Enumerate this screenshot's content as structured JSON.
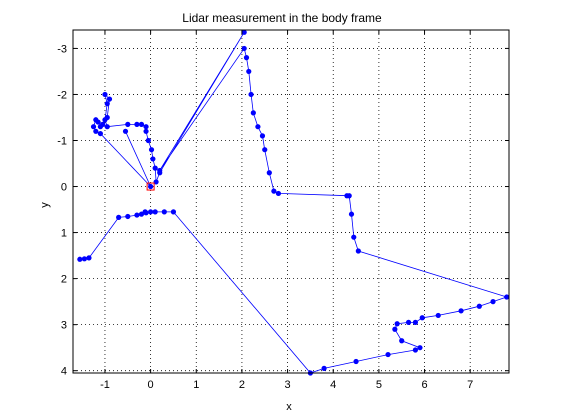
{
  "chart_data": {
    "type": "line",
    "title": "Lidar measurement in the body frame",
    "xlabel": "x",
    "ylabel": "y",
    "xlim": [
      -1.7,
      7.85
    ],
    "ylim": [
      -3.4,
      4.05
    ],
    "y_reversed": true,
    "grid": true,
    "x_ticks": [
      -1,
      0,
      1,
      2,
      3,
      4,
      5,
      6,
      7
    ],
    "y_ticks": [
      -3,
      -2,
      -1,
      0,
      1,
      2,
      3,
      4
    ],
    "series": [
      {
        "color": "#0000ff",
        "marker": "point",
        "points": [
          [
            -1.55,
            1.58
          ],
          [
            -1.45,
            1.57
          ],
          [
            -1.35,
            1.55
          ],
          [
            -0.7,
            0.67
          ],
          [
            -0.5,
            0.65
          ],
          [
            -0.3,
            0.62
          ],
          [
            -0.2,
            0.6
          ],
          [
            -0.1,
            0.57
          ],
          [
            -0.12,
            0.55
          ],
          [
            0.0,
            0.55
          ],
          [
            0.1,
            0.55
          ],
          [
            0.3,
            0.55
          ],
          [
            0.5,
            0.55
          ],
          [
            3.5,
            4.05
          ],
          [
            3.8,
            3.95
          ],
          [
            4.5,
            3.8
          ],
          [
            5.2,
            3.65
          ],
          [
            5.8,
            3.55
          ],
          [
            5.9,
            3.5
          ],
          [
            5.5,
            3.35
          ],
          [
            5.35,
            3.1
          ],
          [
            5.4,
            2.98
          ],
          [
            5.65,
            2.95
          ],
          [
            5.8,
            2.95
          ],
          [
            5.95,
            2.85
          ],
          [
            6.3,
            2.8
          ],
          [
            6.8,
            2.7
          ],
          [
            7.2,
            2.6
          ],
          [
            7.5,
            2.5
          ],
          [
            7.8,
            2.4
          ],
          [
            4.55,
            1.4
          ],
          [
            4.45,
            1.1
          ],
          [
            4.4,
            0.6
          ],
          [
            4.35,
            0.2
          ],
          [
            4.3,
            0.2
          ],
          [
            2.8,
            0.15
          ],
          [
            2.7,
            0.1
          ],
          [
            2.6,
            -0.3
          ],
          [
            2.5,
            -0.8
          ],
          [
            2.45,
            -1.1
          ],
          [
            2.35,
            -1.3
          ],
          [
            2.25,
            -1.6
          ],
          [
            2.2,
            -2.0
          ],
          [
            2.15,
            -2.5
          ],
          [
            2.1,
            -2.8
          ],
          [
            2.05,
            -3.0
          ],
          [
            0.2,
            -0.35
          ],
          [
            2.05,
            -3.35
          ],
          [
            0.2,
            -0.3
          ],
          [
            0.12,
            -0.1
          ],
          [
            0.1,
            -0.4
          ],
          [
            0.05,
            -0.6
          ],
          [
            0.02,
            -0.8
          ],
          [
            -0.05,
            -1.0
          ],
          [
            -0.1,
            -1.2
          ],
          [
            -0.1,
            -1.3
          ],
          [
            -0.2,
            -1.35
          ],
          [
            -0.3,
            -1.35
          ],
          [
            -0.5,
            -1.35
          ],
          [
            -0.95,
            -1.3
          ],
          [
            -1.0,
            -1.45
          ],
          [
            -0.95,
            -1.8
          ],
          [
            -1.0,
            -2.0
          ],
          [
            -0.9,
            -1.9
          ],
          [
            -0.95,
            -1.5
          ],
          [
            -1.05,
            -1.35
          ],
          [
            -1.1,
            -1.3
          ],
          [
            -1.15,
            -1.4
          ],
          [
            -1.2,
            -1.45
          ],
          [
            -1.25,
            -1.3
          ],
          [
            -1.2,
            -1.2
          ],
          [
            -1.1,
            -1.15
          ],
          [
            0.0,
            0.0
          ],
          [
            -0.55,
            -1.2
          ]
        ]
      }
    ],
    "annotations": [
      {
        "type": "marker",
        "shape": "square",
        "color": "#ff0000",
        "at": [
          0,
          0
        ]
      }
    ]
  }
}
